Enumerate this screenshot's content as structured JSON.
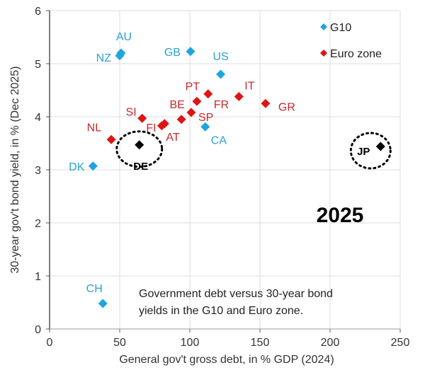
{
  "chart_data": {
    "type": "scatter",
    "title": "2025",
    "annotation": [
      "Government debt versus 30-year bond",
      "yields in the G10 and Euro zone."
    ],
    "xlabel": "General gov't gross debt, in % GDP (2024)",
    "ylabel": "30-year gov't bond yield, in % (Dec 2025)",
    "xlim": [
      0,
      250
    ],
    "ylim": [
      0,
      6
    ],
    "xticks": [
      "0",
      "50",
      "100",
      "150",
      "200",
      "250"
    ],
    "yticks": [
      "0",
      "1",
      "2",
      "3",
      "4",
      "5",
      "6"
    ],
    "grid": true,
    "legend_placement": "top-right",
    "colors": {
      "G10": "#1ca6e0",
      "Euro zone": "#e01414",
      "highlight": "#000000"
    },
    "series": [
      {
        "name": "G10",
        "points": [
          {
            "label": "AU",
            "x": 51,
            "y": 5.2
          },
          {
            "label": "NZ",
            "x": 50,
            "y": 5.15
          },
          {
            "label": "GB",
            "x": 100.5,
            "y": 5.23
          },
          {
            "label": "US",
            "x": 122,
            "y": 4.8
          },
          {
            "label": "CA",
            "x": 111,
            "y": 3.81
          },
          {
            "label": "DK",
            "x": 31,
            "y": 3.07
          },
          {
            "label": "CH",
            "x": 38,
            "y": 0.48
          }
        ]
      },
      {
        "name": "Euro zone",
        "points": [
          {
            "label": "NL",
            "x": 44,
            "y": 3.57
          },
          {
            "label": "SI",
            "x": 66,
            "y": 3.97
          },
          {
            "label": "FI",
            "x": 80,
            "y": 3.83
          },
          {
            "label": "AT",
            "x": 82,
            "y": 3.87
          },
          {
            "label": "BE",
            "x": 94,
            "y": 3.95
          },
          {
            "label": "SP",
            "x": 101,
            "y": 4.08
          },
          {
            "label": "PT",
            "x": 105,
            "y": 4.29
          },
          {
            "label": "FR",
            "x": 113,
            "y": 4.43
          },
          {
            "label": "IT",
            "x": 135,
            "y": 4.38
          },
          {
            "label": "GR",
            "x": 154,
            "y": 4.25
          }
        ]
      },
      {
        "points": [
          {
            "label": "DE",
            "x": 64,
            "y": 3.47
          },
          {
            "label": "JP",
            "x": 236,
            "y": 3.44
          }
        ]
      }
    ]
  }
}
